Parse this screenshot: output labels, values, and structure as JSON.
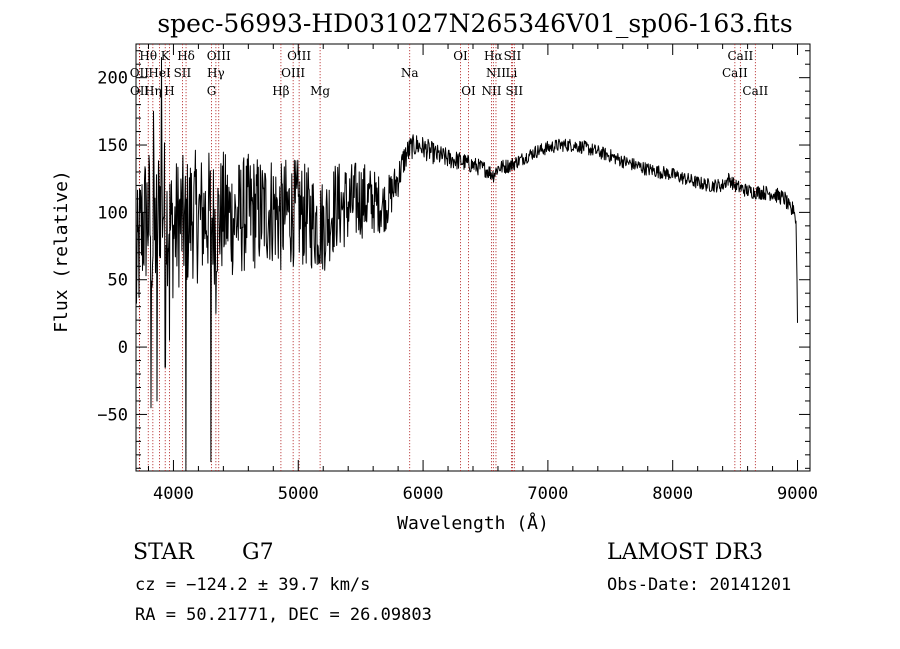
{
  "chart_data": {
    "type": "line",
    "title": "spec-56993-HD031027N265346V01_sp06-163.fits",
    "xlabel": "Wavelength (Å)",
    "ylabel": "Flux (relative)",
    "xlim": [
      3700,
      9100
    ],
    "ylim": [
      -92,
      225
    ],
    "x_ticks": [
      4000,
      5000,
      6000,
      7000,
      8000,
      9000
    ],
    "x_tick_labels": [
      "4000",
      "5000",
      "6000",
      "7000",
      "8000",
      "9000"
    ],
    "y_ticks": [
      -50,
      0,
      50,
      100,
      150,
      200
    ],
    "y_tick_labels": [
      "−50",
      "0",
      "50",
      "100",
      "150",
      "200"
    ],
    "series": [
      {
        "name": "flux",
        "color": "#000000",
        "anchors_x": [
          3700,
          3720,
          3750,
          3780,
          3800,
          3830,
          3860,
          3890,
          3930,
          3970,
          4000,
          4050,
          4101,
          4150,
          4200,
          4300,
          4340,
          4400,
          4500,
          4600,
          4700,
          4800,
          4861,
          4900,
          5000,
          5100,
          5200,
          5300,
          5400,
          5500,
          5600,
          5700,
          5750,
          5800,
          5850,
          5900,
          5950,
          6000,
          6100,
          6200,
          6300,
          6400,
          6500,
          6563,
          6600,
          6700,
          6800,
          6900,
          7000,
          7100,
          7200,
          7300,
          7400,
          7500,
          7600,
          7700,
          7800,
          7900,
          8000,
          8100,
          8200,
          8300,
          8400,
          8450,
          8498,
          8542,
          8600,
          8662,
          8700,
          8800,
          8850,
          8900,
          8950,
          8970,
          8990,
          9000
        ],
        "anchors_y": [
          50,
          70,
          90,
          95,
          100,
          80,
          85,
          110,
          105,
          90,
          85,
          95,
          90,
          100,
          95,
          100,
          90,
          100,
          95,
          100,
          100,
          103,
          95,
          100,
          100,
          95,
          90,
          105,
          105,
          110,
          108,
          105,
          115,
          125,
          140,
          148,
          150,
          148,
          143,
          140,
          138,
          135,
          132,
          128,
          133,
          135,
          140,
          145,
          148,
          150,
          150,
          148,
          145,
          142,
          138,
          135,
          132,
          130,
          128,
          125,
          122,
          120,
          120,
          125,
          120,
          118,
          116,
          115,
          115,
          114,
          112,
          110,
          100,
          105,
          90,
          20
        ],
        "noise_amplitude_x": [
          3700,
          4100,
          4500,
          5000,
          5500,
          5800,
          5900,
          6500,
          6800,
          8500,
          9000
        ],
        "noise_amplitude_y": [
          55,
          50,
          45,
          40,
          30,
          14,
          9,
          6,
          5,
          5,
          6
        ],
        "deep_dips": [
          {
            "x": 3820,
            "y": -45
          },
          {
            "x": 3868,
            "y": -40
          },
          {
            "x": 3934,
            "y": -15
          },
          {
            "x": 3968,
            "y": 5
          },
          {
            "x": 4101,
            "y": -92
          },
          {
            "x": 4300,
            "y": -85
          },
          {
            "x": 4340,
            "y": 25
          }
        ],
        "tall_peaks": [
          {
            "x": 3840,
            "y": 175
          },
          {
            "x": 3905,
            "y": 215
          }
        ]
      }
    ],
    "line_markers": [
      {
        "label": "Hθ",
        "x": 3798,
        "row": 0
      },
      {
        "label": "K",
        "x": 3934,
        "row": 0
      },
      {
        "label": "Hδ",
        "x": 4101,
        "row": 0
      },
      {
        "label": "OIII",
        "x": 4363,
        "row": 0
      },
      {
        "label": "OIII",
        "x": 5007,
        "row": 0
      },
      {
        "label": "OI",
        "x": 6300,
        "row": 0
      },
      {
        "label": "Hα",
        "x": 6563,
        "row": 0
      },
      {
        "label": "SII",
        "x": 6716,
        "row": 0
      },
      {
        "label": "CaII",
        "x": 8542,
        "row": 0
      },
      {
        "label": "OII",
        "x": 3727,
        "row": 1
      },
      {
        "label": "HeI",
        "x": 3889,
        "row": 1
      },
      {
        "label": "SII",
        "x": 4072,
        "row": 1
      },
      {
        "label": "Hγ",
        "x": 4340,
        "row": 1
      },
      {
        "label": "OIII",
        "x": 4959,
        "row": 1
      },
      {
        "label": "Na",
        "x": 5893,
        "row": 1
      },
      {
        "label": "NII",
        "x": 6584,
        "row": 1
      },
      {
        "label": "Li",
        "x": 6708,
        "row": 1
      },
      {
        "label": "CaII",
        "x": 8498,
        "row": 1
      },
      {
        "label": "OII",
        "x": 3729,
        "row": 2
      },
      {
        "label": "Hη",
        "x": 3835,
        "row": 2
      },
      {
        "label": "H",
        "x": 3968,
        "row": 2
      },
      {
        "label": "G",
        "x": 4305,
        "row": 2
      },
      {
        "label": "Hβ",
        "x": 4861,
        "row": 2
      },
      {
        "label": "Mg",
        "x": 5175,
        "row": 2
      },
      {
        "label": "OI",
        "x": 6364,
        "row": 2
      },
      {
        "label": "NII",
        "x": 6548,
        "row": 2
      },
      {
        "label": "SII",
        "x": 6731,
        "row": 2
      },
      {
        "label": "CaII",
        "x": 8662,
        "row": 2
      }
    ],
    "marker_color": "#b22222"
  },
  "info": {
    "object_class": "STAR",
    "subclass": "G7",
    "survey": "LAMOST DR3",
    "redshift": "cz = −124.2 ± 39.7 km/s",
    "obs_date": "Obs-Date: 20141201",
    "coords": "RA =  50.21771, DEC =  26.09803"
  }
}
